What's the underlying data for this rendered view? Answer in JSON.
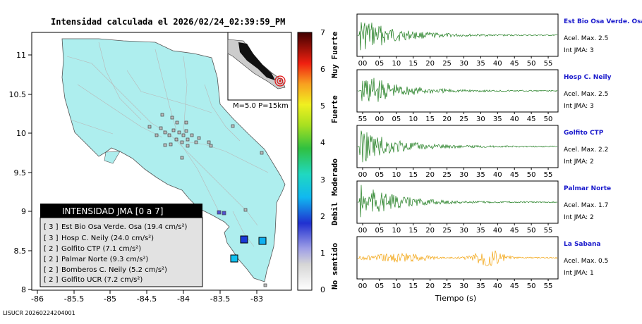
{
  "title": "Intensidad calculada el 2026/02/24_02:39:59_PM",
  "footer": "LISUCR 20260224204001",
  "map": {
    "x_ticks": [
      "-86",
      "-85.5",
      "-85",
      "-84.5",
      "-84",
      "-83.5",
      "-83"
    ],
    "y_ticks": [
      "11",
      "10.5",
      "10",
      "9.5",
      "9",
      "8.5",
      "8"
    ],
    "inset_label": "M=5.0 P=15km",
    "legend": {
      "header": "INTENSIDAD JMA [0 a 7]",
      "rows": [
        {
          "level": "[ 3 ]",
          "text": "Est Bio Osa Verde. Osa (19.4 cm/s²)"
        },
        {
          "level": "[ 3 ]",
          "text": "Hosp C. Neily (24.0 cm/s²)"
        },
        {
          "level": "[ 2 ]",
          "text": "Golfito CTP (7.1 cm/s²)"
        },
        {
          "level": "[ 2 ]",
          "text": "Palmar Norte (9.3 cm/s²)"
        },
        {
          "level": "[ 2 ]",
          "text": "Bomberos C. Neily (5.2 cm/s²)"
        },
        {
          "level": "[ 2 ]",
          "text": "Golfito UCR (7.2 cm/s²)"
        }
      ]
    }
  },
  "colorbar": {
    "ticks": [
      "0",
      "1",
      "2",
      "3",
      "4",
      "5",
      "6",
      "7"
    ],
    "categories": [
      "No sentido",
      "Debil",
      "Moderado",
      "Fuerte",
      "Muy Fuerte"
    ]
  },
  "waveforms": {
    "xlabel": "Tiempo (s)",
    "stations": [
      {
        "name": "Est Bio Osa Verde. Osa",
        "acel": "Acel. Max. 2.5",
        "jma": "Int JMA: 3",
        "color": "#1a7a1a",
        "ticks": [
          "00",
          "05",
          "10",
          "15",
          "20",
          "25",
          "30",
          "35",
          "40",
          "45",
          "50",
          "55"
        ]
      },
      {
        "name": "Hosp C. Neily",
        "acel": "Acel. Max. 2.5",
        "jma": "Int JMA: 3",
        "color": "#1a7a1a",
        "ticks": [
          "55",
          "00",
          "05",
          "10",
          "15",
          "20",
          "25",
          "30",
          "35",
          "40",
          "45",
          "50"
        ]
      },
      {
        "name": "Golfito CTP",
        "acel": "Acel. Max. 2.2",
        "jma": "Int JMA: 2",
        "color": "#1a7a1a",
        "ticks": [
          "00",
          "05",
          "10",
          "15",
          "20",
          "25",
          "30",
          "35",
          "40",
          "45",
          "50",
          "55"
        ]
      },
      {
        "name": "Palmar Norte",
        "acel": "Acel. Max. 1.7",
        "jma": "Int JMA: 2",
        "color": "#1a7a1a",
        "ticks": [
          "00",
          "05",
          "10",
          "15",
          "20",
          "25",
          "30",
          "35",
          "40",
          "45",
          "50",
          "55"
        ]
      },
      {
        "name": "La Sabana",
        "acel": "Acel. Max. 0.5",
        "jma": "Int JMA: 1",
        "color": "#f2a20a",
        "ticks": [
          "00",
          "05",
          "10",
          "15",
          "20",
          "25",
          "30",
          "35",
          "40",
          "45",
          "50",
          "55"
        ]
      }
    ]
  }
}
